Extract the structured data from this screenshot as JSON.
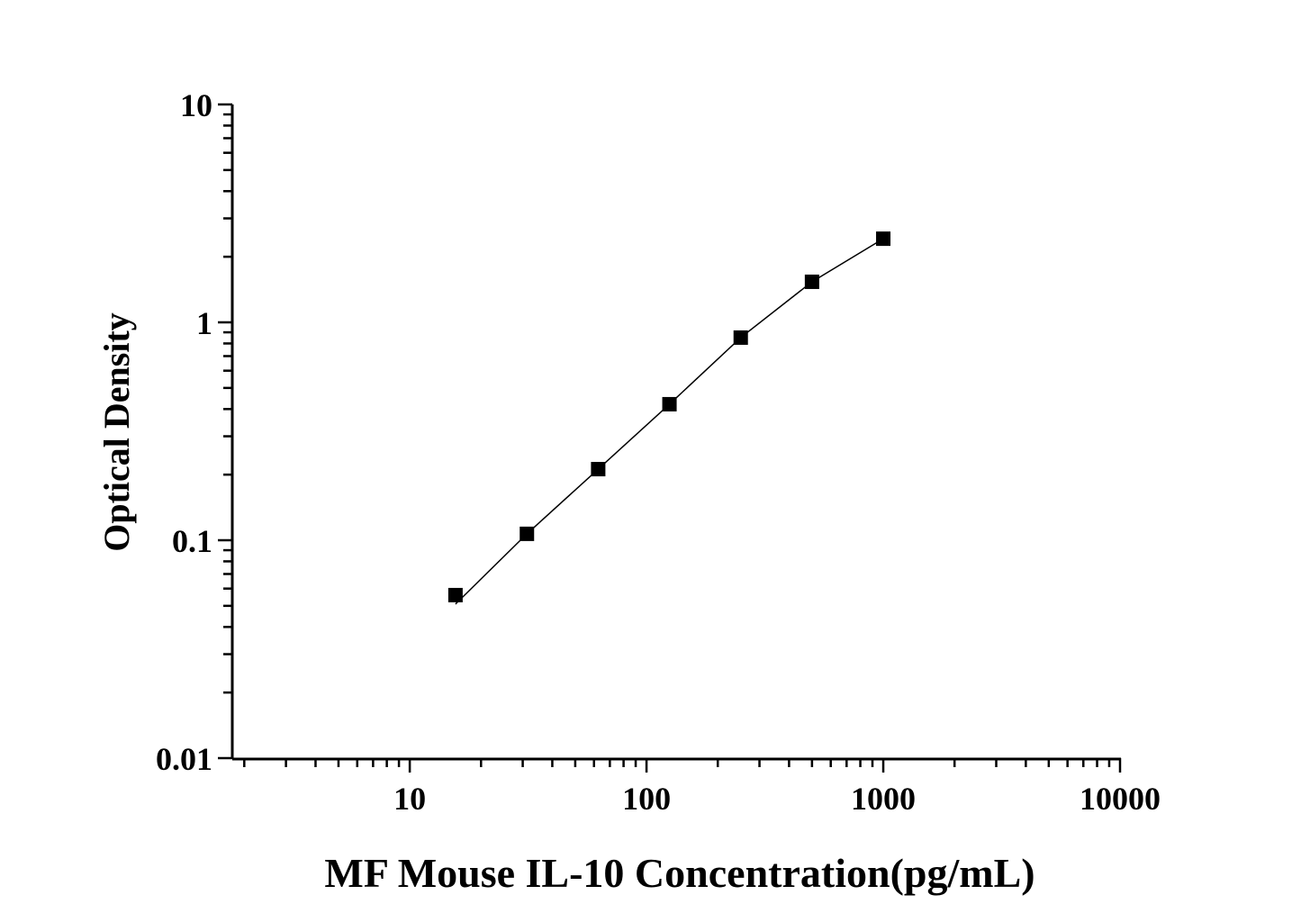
{
  "chart_data": {
    "type": "line",
    "title": "",
    "xlabel": "MF Mouse IL-10 Concentration(pg/mL)",
    "ylabel": "Optical Density",
    "xscale": "log",
    "yscale": "log",
    "xlim": [
      1.78,
      10000
    ],
    "ylim": [
      0.01,
      10
    ],
    "xticks": [
      10,
      100,
      1000,
      10000
    ],
    "xtick_labels": [
      "10",
      "100",
      "1000",
      "10000"
    ],
    "yticks": [
      0.01,
      0.1,
      1,
      10
    ],
    "ytick_labels": [
      "0.01",
      "0.1",
      "1",
      "10"
    ],
    "grid": false,
    "marker": "square",
    "color": "#000000",
    "series": [
      {
        "x": [
          15.6,
          31.25,
          62.5,
          125,
          250,
          500,
          1000
        ],
        "y": [
          0.056,
          0.107,
          0.212,
          0.421,
          0.851,
          1.535,
          2.42
        ]
      }
    ]
  }
}
